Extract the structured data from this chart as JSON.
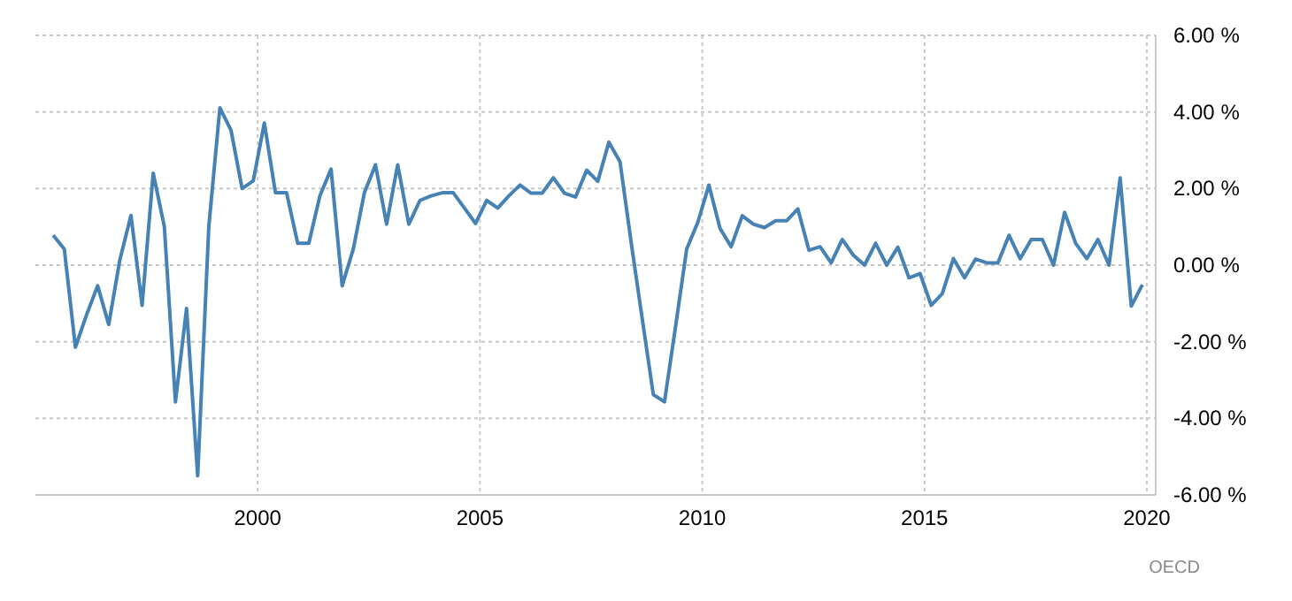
{
  "chart_data": {
    "type": "line",
    "x": [
      1995.4,
      1995.65,
      1995.9,
      1996.15,
      1996.4,
      1996.65,
      1996.9,
      1997.15,
      1997.4,
      1997.65,
      1997.9,
      1998.15,
      1998.4,
      1998.65,
      1998.9,
      1999.15,
      1999.4,
      1999.65,
      1999.9,
      2000.15,
      2000.4,
      2000.65,
      2000.9,
      2001.15,
      2001.4,
      2001.65,
      2001.9,
      2002.15,
      2002.4,
      2002.65,
      2002.9,
      2003.15,
      2003.4,
      2003.65,
      2003.9,
      2004.15,
      2004.4,
      2004.65,
      2004.9,
      2005.15,
      2005.4,
      2005.65,
      2005.9,
      2006.15,
      2006.4,
      2006.65,
      2006.9,
      2007.15,
      2007.4,
      2007.65,
      2007.9,
      2008.15,
      2008.4,
      2008.65,
      2008.9,
      2009.15,
      2009.4,
      2009.65,
      2009.9,
      2010.15,
      2010.4,
      2010.65,
      2010.9,
      2011.15,
      2011.4,
      2011.65,
      2011.9,
      2012.15,
      2012.4,
      2012.65,
      2012.9,
      2013.15,
      2013.4,
      2013.65,
      2013.9,
      2014.15,
      2014.4,
      2014.65,
      2014.9,
      2015.15,
      2015.4,
      2015.65,
      2015.9,
      2016.15,
      2016.4,
      2016.65,
      2016.9,
      2017.15,
      2017.4,
      2017.65,
      2017.9,
      2018.15,
      2018.4,
      2018.65,
      2018.9,
      2019.15,
      2019.4,
      2019.65,
      2019.9
    ],
    "series": [
      {
        "color": "#4682b4",
        "values": [
          0.78,
          0.42,
          -2.14,
          -1.3,
          -0.54,
          -1.55,
          0.14,
          1.3,
          -1.05,
          2.4,
          1.01,
          -3.57,
          -1.13,
          -5.5,
          1.0,
          4.11,
          3.52,
          2.0,
          2.2,
          3.71,
          1.89,
          1.89,
          0.57,
          0.57,
          1.81,
          2.51,
          -0.54,
          0.42,
          1.89,
          2.62,
          1.07,
          2.62,
          1.07,
          1.69,
          1.81,
          1.89,
          1.89,
          1.49,
          1.09,
          1.69,
          1.49,
          1.81,
          2.09,
          1.88,
          1.88,
          2.28,
          1.88,
          1.78,
          2.48,
          2.19,
          3.21,
          2.7,
          0.6,
          -1.4,
          -3.38,
          -3.57,
          -1.6,
          0.42,
          1.12,
          2.09,
          0.96,
          0.48,
          1.29,
          1.07,
          0.98,
          1.16,
          1.16,
          1.47,
          0.39,
          0.48,
          0.06,
          0.67,
          0.26,
          0.0,
          0.57,
          0.0,
          0.47,
          -0.33,
          -0.22,
          -1.05,
          -0.74,
          0.17,
          -0.33,
          0.16,
          0.06,
          0.06,
          0.78,
          0.17,
          0.67,
          0.67,
          0.0,
          1.38,
          0.57,
          0.17,
          0.67,
          0.0,
          2.28,
          -1.07,
          -0.51
        ]
      }
    ],
    "xlim": [
      1995,
      2020.2
    ],
    "xticks": [
      2000,
      2005,
      2010,
      2015,
      2020
    ],
    "ylim": [
      -6,
      6
    ],
    "yticks": [
      {
        "value": -6,
        "label": "-6.00 %"
      },
      {
        "value": -4,
        "label": "-4.00 %"
      },
      {
        "value": -2,
        "label": "-2.00 %"
      },
      {
        "value": 0,
        "label": "0.00 %"
      },
      {
        "value": 2,
        "label": "2.00 %"
      },
      {
        "value": 4,
        "label": "4.00 %"
      },
      {
        "value": 6,
        "label": "6.00 %"
      }
    ],
    "grid": true,
    "line_style": "solid",
    "marker": "none",
    "annotations": [
      "OECD"
    ]
  }
}
